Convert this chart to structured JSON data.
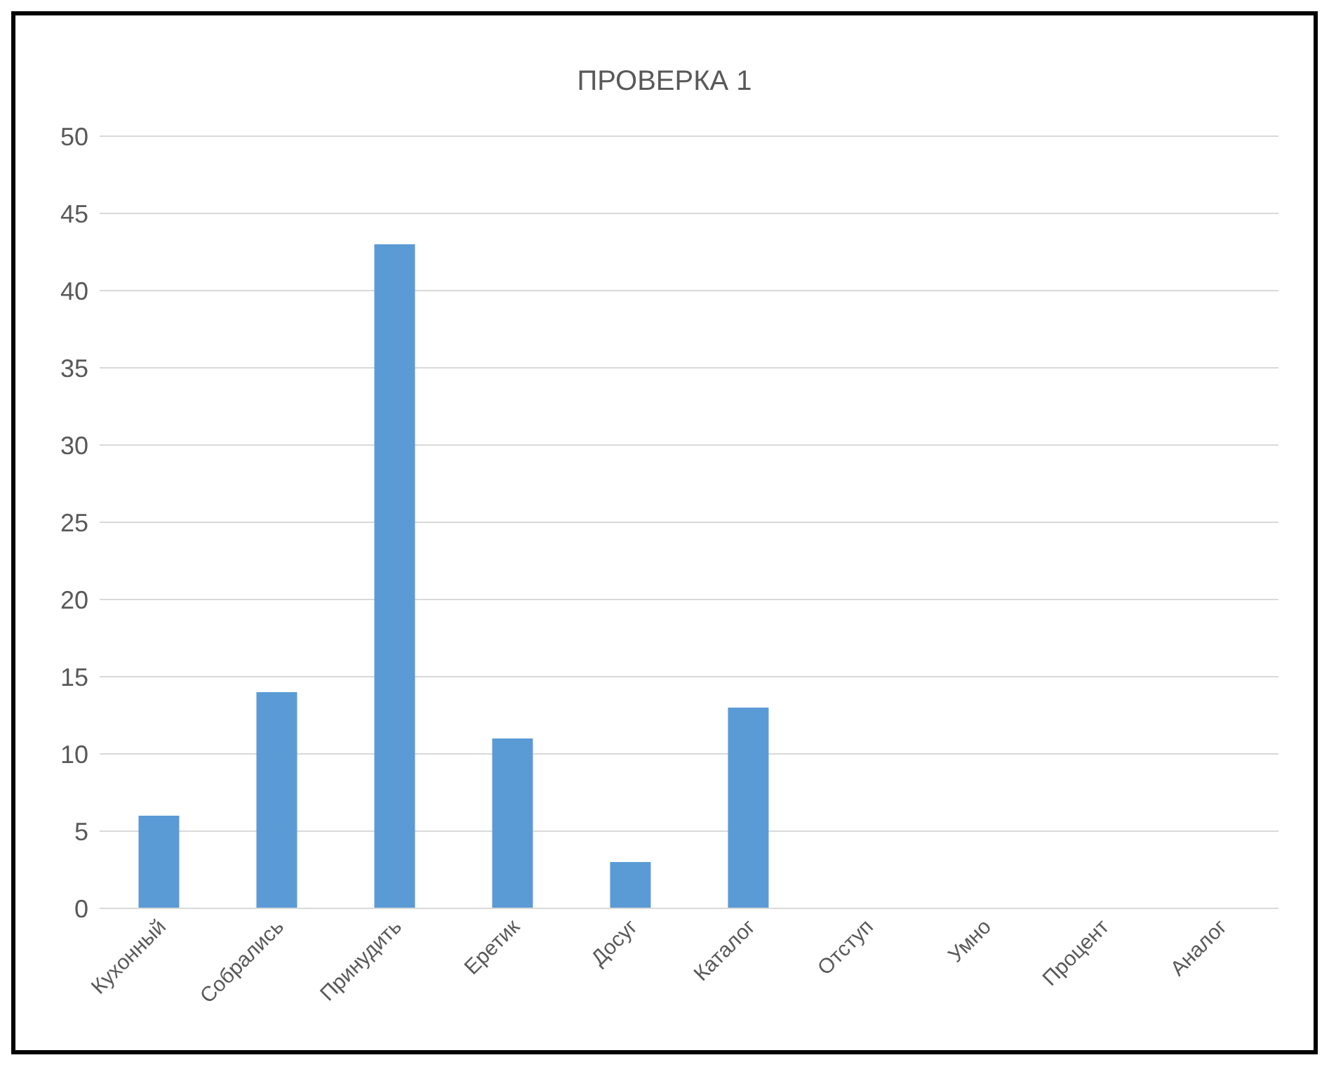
{
  "chart_data": {
    "type": "bar",
    "title": "ПРОВЕРКА 1",
    "categories": [
      "Кухонный",
      "Собрались",
      "Принудить",
      "Еретик",
      "Досуг",
      "Каталог",
      "Отступ",
      "Умно",
      "Процент",
      "Аналог"
    ],
    "values": [
      6,
      14,
      43,
      11,
      3,
      13,
      0,
      0,
      0,
      0
    ],
    "color": "#5b9bd5",
    "ylim": [
      0,
      50
    ],
    "yticks": [
      0,
      5,
      10,
      15,
      20,
      25,
      30,
      35,
      40,
      45,
      50
    ],
    "grid": "y",
    "legend": false
  }
}
